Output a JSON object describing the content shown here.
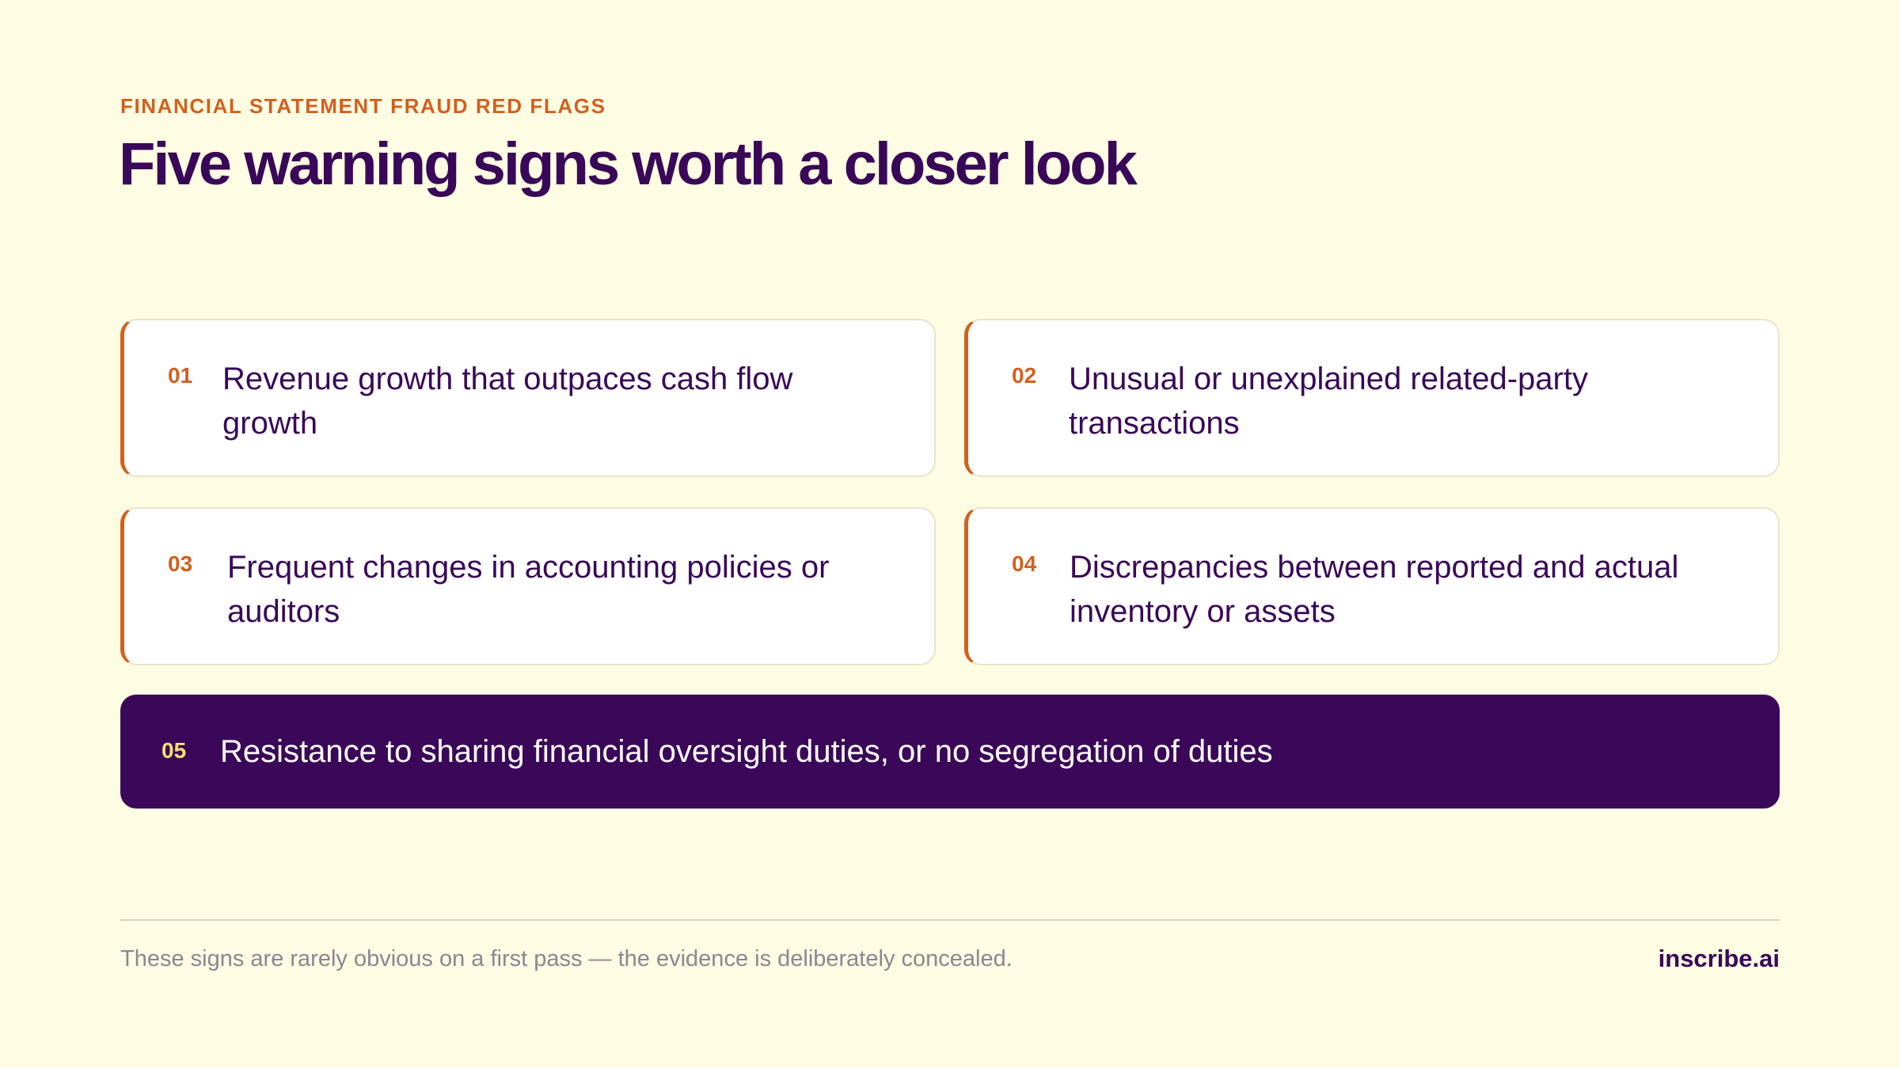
{
  "header": {
    "eyebrow": "FINANCIAL STATEMENT FRAUD RED FLAGS",
    "title": "Five warning signs worth a closer look"
  },
  "cards": [
    {
      "number": "01",
      "text": "Revenue growth that outpaces cash flow growth"
    },
    {
      "number": "02",
      "text": "Unusual or unexplained related-party transactions"
    },
    {
      "number": "03",
      "text": "Frequent changes in accounting policies or auditors"
    },
    {
      "number": "04",
      "text": "Discrepancies between reported and actual inventory or assets"
    }
  ],
  "highlight": {
    "number": "05",
    "text": "Resistance to sharing financial oversight duties, or no segregation of duties"
  },
  "footer": {
    "note": "These signs are rarely obvious on a first pass — the evidence is deliberately concealed.",
    "brand": "inscribe.ai"
  },
  "colors": {
    "background": "#FEFCE2",
    "accent": "#D2601F",
    "primary": "#3A0858",
    "highlight_number": "#F4E173"
  }
}
